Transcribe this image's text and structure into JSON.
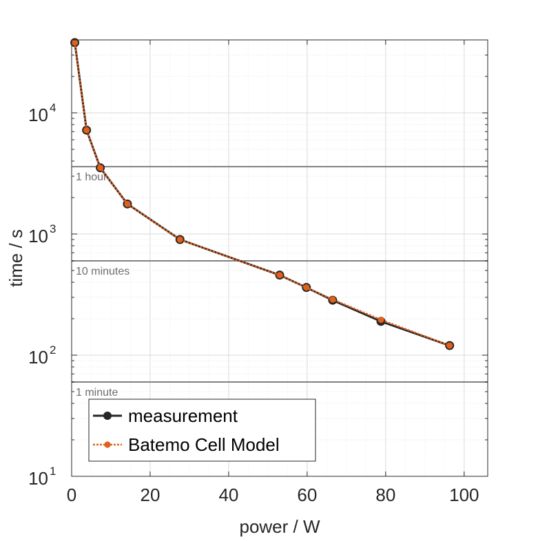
{
  "chart_data": {
    "type": "line",
    "xlabel": "power / W",
    "ylabel": "time / s",
    "x_scale": "linear",
    "y_scale": "log",
    "xlim": [
      0,
      106
    ],
    "ylim": [
      10,
      40000
    ],
    "x_ticks": [
      0,
      20,
      40,
      60,
      80,
      100
    ],
    "x_tick_labels": [
      "0",
      "20",
      "40",
      "60",
      "80",
      "100"
    ],
    "y_ticks": [
      10,
      100,
      1000,
      10000
    ],
    "y_tick_labels": [
      {
        "base": "10",
        "exp": "1"
      },
      {
        "base": "10",
        "exp": "2"
      },
      {
        "base": "10",
        "exp": "3"
      },
      {
        "base": "10",
        "exp": "4"
      }
    ],
    "grid": true,
    "legend_position": "bottom-left",
    "reference_lines": [
      {
        "y": 3600,
        "label": "1 hour"
      },
      {
        "y": 600,
        "label": "10 minutes"
      },
      {
        "y": 60,
        "label": "1 minute"
      }
    ],
    "series": [
      {
        "name": "measurement",
        "color": "#262626",
        "style": "solid",
        "x": [
          0.8,
          3.8,
          7.3,
          14.2,
          27.6,
          53.0,
          59.8,
          66.5,
          78.8,
          96.3
        ],
        "y": [
          38000,
          7200,
          3520,
          1770,
          900,
          458,
          362,
          284,
          190,
          120
        ]
      },
      {
        "name": "Batemo Cell Model",
        "color": "#e0601c",
        "style": "dotted",
        "x": [
          0.8,
          3.8,
          7.3,
          14.2,
          27.6,
          53.0,
          59.8,
          66.5,
          78.8,
          96.3
        ],
        "y": [
          38000,
          7200,
          3520,
          1770,
          900,
          458,
          362,
          288,
          196,
          120
        ]
      }
    ]
  }
}
